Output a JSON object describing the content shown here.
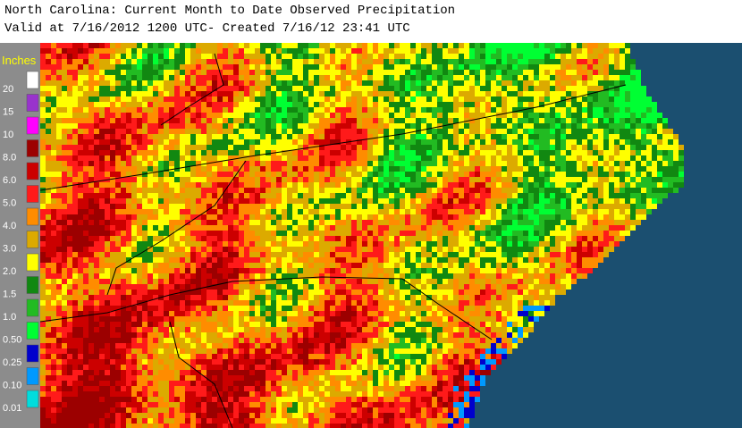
{
  "header": {
    "title": "North Carolina: Current Month to Date Observed Precipitation",
    "subtitle": "Valid at 7/16/2012 1200 UTC- Created 7/16/12 23:41 UTC"
  },
  "legend": {
    "title": "Inches",
    "items": [
      {
        "label": "20",
        "color": "#ffffff"
      },
      {
        "label": "15",
        "color": "#9933cc"
      },
      {
        "label": "10",
        "color": "#ff00ff"
      },
      {
        "label": "8.0",
        "color": "#9c0000"
      },
      {
        "label": "6.0",
        "color": "#cc0000"
      },
      {
        "label": "5.0",
        "color": "#ff1a1a"
      },
      {
        "label": "4.0",
        "color": "#ff8c00"
      },
      {
        "label": "3.0",
        "color": "#dcaa00"
      },
      {
        "label": "2.0",
        "color": "#ffff00"
      },
      {
        "label": "1.5",
        "color": "#118811"
      },
      {
        "label": "1.0",
        "color": "#22bb22"
      },
      {
        "label": "0.50",
        "color": "#00ff33"
      },
      {
        "label": "0.25",
        "color": "#0000cc"
      },
      {
        "label": "0.10",
        "color": "#0099ff"
      },
      {
        "label": "0.01",
        "color": "#00dddd"
      }
    ]
  }
}
